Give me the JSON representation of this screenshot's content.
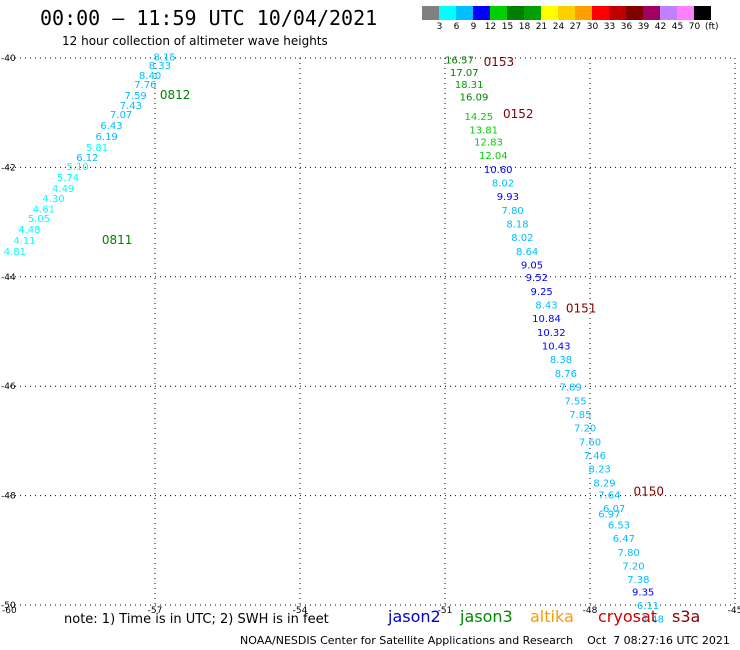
{
  "title": "00:00 — 11:59 UTC 10/04/2021",
  "subtitle": "12 hour collection of altimeter wave heights",
  "note": "note: 1) Time is in UTC; 2) SWH is in feet",
  "footer": "NOAA/NESDIS Center for Satellite Applications and Research    Oct  7 08:27:16 UTC 2021",
  "satellites": [
    {
      "name": "jason2",
      "color": "#0000cc"
    },
    {
      "name": "jason3",
      "color": "#008800"
    },
    {
      "name": "altika",
      "color": "#ff9900"
    },
    {
      "name": "cryosat",
      "color": "#cc0000"
    },
    {
      "name": "s3a",
      "color": "#880000"
    }
  ],
  "colorbar": {
    "colors": [
      "#808080",
      "#00ffff",
      "#00bfff",
      "#0000ff",
      "#00d000",
      "#008000",
      "#00a000",
      "#ffff00",
      "#ffd000",
      "#ffa000",
      "#ff0000",
      "#c00000",
      "#800000",
      "#a00060",
      "#c080ff",
      "#ff80ff",
      "#000000"
    ],
    "labels": [
      "3",
      "6",
      "9",
      "12",
      "15",
      "18",
      "21",
      "24",
      "27",
      "30",
      "33",
      "36",
      "39",
      "42",
      "45",
      "70"
    ],
    "unit": "(ft)"
  },
  "chart_data": {
    "type": "scatter",
    "title": "00:00 — 11:59 UTC 10/04/2021",
    "xlim": [
      -60,
      -45
    ],
    "ylim": [
      -50,
      -40
    ],
    "x_ticks": [
      "-57",
      "-54",
      "-51",
      "-48",
      "-45"
    ],
    "y_ticks": [
      "-40",
      "-42",
      "-44",
      "-46",
      "-48",
      "-50"
    ],
    "x_axis_corner": "-60",
    "grid": true,
    "annotations": [
      {
        "text": "0811",
        "x": -58.1,
        "y": -43.4,
        "color": "#008000"
      },
      {
        "text": "0812",
        "x": -56.9,
        "y": -40.75,
        "color": "#008000"
      },
      {
        "text": "0153",
        "x": -50.2,
        "y": -40.15,
        "color": "#800000"
      },
      {
        "text": "0152",
        "x": -49.8,
        "y": -41.1,
        "color": "#800000"
      },
      {
        "text": "0151",
        "x": -48.5,
        "y": -44.65,
        "color": "#800000"
      },
      {
        "text": "0150",
        "x": -47.1,
        "y": -48.0,
        "color": "#800000"
      }
    ],
    "series": [
      {
        "name": "jason3",
        "points": [
          {
            "lon": -56.8,
            "lat": -40.05,
            "swh": "8.15"
          },
          {
            "lon": -56.9,
            "lat": -40.2,
            "swh": "8.33"
          },
          {
            "lon": -57.1,
            "lat": -40.38,
            "swh": "8.40"
          },
          {
            "lon": -57.2,
            "lat": -40.55,
            "swh": "7.76"
          },
          {
            "lon": -57.4,
            "lat": -40.75,
            "swh": "7.59"
          },
          {
            "lon": -57.5,
            "lat": -40.93,
            "swh": "7.43"
          },
          {
            "lon": -57.7,
            "lat": -41.1,
            "swh": "7.07"
          },
          {
            "lon": -57.9,
            "lat": -41.3,
            "swh": "6.43"
          },
          {
            "lon": -58.0,
            "lat": -41.5,
            "swh": "6.19"
          },
          {
            "lon": -58.2,
            "lat": -41.7,
            "swh": "5.81"
          },
          {
            "lon": -58.4,
            "lat": -41.88,
            "swh": "6.12"
          },
          {
            "lon": -58.6,
            "lat": -42.05,
            "swh": "5.10"
          },
          {
            "lon": -58.8,
            "lat": -42.25,
            "swh": "5.74"
          },
          {
            "lon": -58.9,
            "lat": -42.45,
            "swh": "4.49"
          },
          {
            "lon": -59.1,
            "lat": -42.63,
            "swh": "4.30"
          },
          {
            "lon": -59.3,
            "lat": -42.82,
            "swh": "4.61"
          },
          {
            "lon": -59.4,
            "lat": -43.0,
            "swh": "5.05"
          },
          {
            "lon": -59.6,
            "lat": -43.2,
            "swh": "4.48"
          },
          {
            "lon": -59.7,
            "lat": -43.4,
            "swh": "4.11"
          },
          {
            "lon": -59.9,
            "lat": -43.6,
            "swh": "4.81"
          }
        ]
      },
      {
        "name": "s3a",
        "points": [
          {
            "lon": -50.7,
            "lat": -40.1,
            "swh": "16.57"
          },
          {
            "lon": -50.6,
            "lat": -40.33,
            "swh": "17.07"
          },
          {
            "lon": -50.5,
            "lat": -40.55,
            "swh": "18.31"
          },
          {
            "lon": -50.4,
            "lat": -40.78,
            "swh": "16.09"
          },
          {
            "lon": -50.3,
            "lat": -41.13,
            "swh": "14.25"
          },
          {
            "lon": -50.2,
            "lat": -41.38,
            "swh": "13.81"
          },
          {
            "lon": -50.1,
            "lat": -41.6,
            "swh": "12.83"
          },
          {
            "lon": -50.0,
            "lat": -41.85,
            "swh": "12.04"
          },
          {
            "lon": -49.9,
            "lat": -42.1,
            "swh": "10.60"
          },
          {
            "lon": -49.8,
            "lat": -42.35,
            "swh": "8.02"
          },
          {
            "lon": -49.7,
            "lat": -42.6,
            "swh": "9.93"
          },
          {
            "lon": -49.6,
            "lat": -42.85,
            "swh": "7.80"
          },
          {
            "lon": -49.5,
            "lat": -43.1,
            "swh": "8.18"
          },
          {
            "lon": -49.4,
            "lat": -43.35,
            "swh": "8.02"
          },
          {
            "lon": -49.3,
            "lat": -43.6,
            "swh": "8.64"
          },
          {
            "lon": -49.2,
            "lat": -43.85,
            "swh": "9.05"
          },
          {
            "lon": -49.1,
            "lat": -44.08,
            "swh": "9.52"
          },
          {
            "lon": -49.0,
            "lat": -44.33,
            "swh": "9.25"
          },
          {
            "lon": -48.9,
            "lat": -44.58,
            "swh": "8.43"
          },
          {
            "lon": -48.9,
            "lat": -44.83,
            "swh": "10.84"
          },
          {
            "lon": -48.8,
            "lat": -45.08,
            "swh": "10.32"
          },
          {
            "lon": -48.7,
            "lat": -45.33,
            "swh": "10.43"
          },
          {
            "lon": -48.6,
            "lat": -45.58,
            "swh": "8.38"
          },
          {
            "lon": -48.5,
            "lat": -45.83,
            "swh": "8.76"
          },
          {
            "lon": -48.4,
            "lat": -46.08,
            "swh": "7.89"
          },
          {
            "lon": -48.3,
            "lat": -46.33,
            "swh": "7.55"
          },
          {
            "lon": -48.2,
            "lat": -46.58,
            "swh": "7.85"
          },
          {
            "lon": -48.1,
            "lat": -46.83,
            "swh": "7.20"
          },
          {
            "lon": -48.0,
            "lat": -47.08,
            "swh": "7.60"
          },
          {
            "lon": -47.9,
            "lat": -47.33,
            "swh": "7.46"
          },
          {
            "lon": -47.8,
            "lat": -47.58,
            "swh": "8.23"
          },
          {
            "lon": -47.7,
            "lat": -47.83,
            "swh": "8.29"
          },
          {
            "lon": -47.6,
            "lat": -48.05,
            "swh": "7.64"
          },
          {
            "lon": -47.5,
            "lat": -48.3,
            "swh": "6.07"
          },
          {
            "lon": -47.6,
            "lat": -48.4,
            "swh": "6.97"
          },
          {
            "lon": -47.4,
            "lat": -48.6,
            "swh": "6.53"
          },
          {
            "lon": -47.3,
            "lat": -48.85,
            "swh": "6.47"
          },
          {
            "lon": -47.2,
            "lat": -49.1,
            "swh": "7.80"
          },
          {
            "lon": -47.1,
            "lat": -49.35,
            "swh": "7.20"
          },
          {
            "lon": -47.0,
            "lat": -49.6,
            "swh": "7.38"
          },
          {
            "lon": -46.9,
            "lat": -49.83,
            "swh": "9.35"
          },
          {
            "lon": -46.8,
            "lat": -50.07,
            "swh": "6.11"
          },
          {
            "lon": -46.7,
            "lat": -50.32,
            "swh": "7.48"
          }
        ]
      }
    ]
  }
}
